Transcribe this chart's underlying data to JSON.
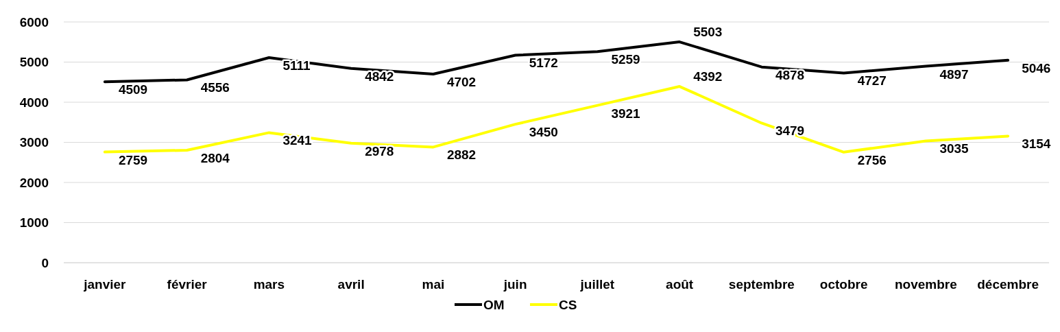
{
  "chart_data": {
    "type": "line",
    "categories": [
      "janvier",
      "février",
      "mars",
      "avril",
      "mai",
      "juin",
      "juillet",
      "août",
      "septembre",
      "octobre",
      "novembre",
      "décembre"
    ],
    "series": [
      {
        "name": "OM",
        "color": "#000000",
        "values": [
          4509,
          4556,
          5111,
          4842,
          4702,
          5172,
          5259,
          5503,
          4878,
          4727,
          4897,
          5046
        ]
      },
      {
        "name": "CS",
        "color": "#ffff00",
        "values": [
          2759,
          2804,
          3241,
          2978,
          2882,
          3450,
          3921,
          4392,
          3479,
          2756,
          3035,
          3154
        ]
      }
    ],
    "ylim": [
      0,
      6000
    ],
    "yticks": [
      0,
      1000,
      2000,
      3000,
      4000,
      5000,
      6000
    ],
    "grid": "y",
    "legend": "bottom",
    "data_labels": true,
    "marker": "none",
    "line_style": "solid"
  }
}
